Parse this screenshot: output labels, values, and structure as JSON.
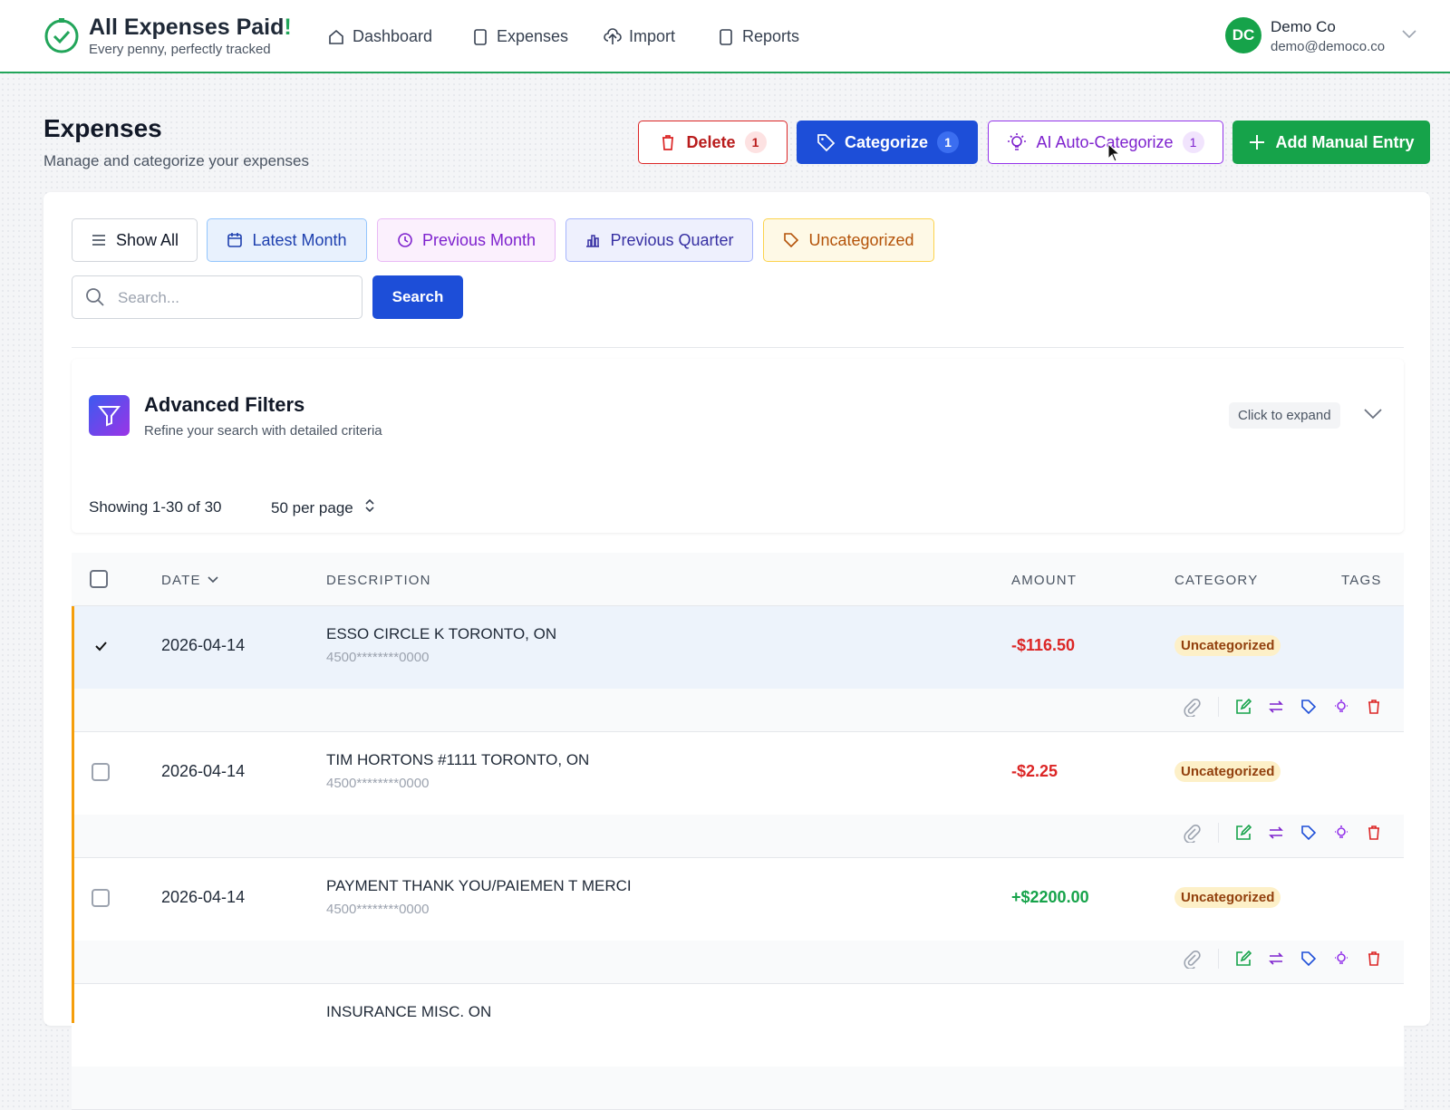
{
  "header": {
    "brand": "All Expenses Paid",
    "brand_mark": "!",
    "tagline": "Every penny, perfectly tracked",
    "nav": [
      "Dashboard",
      "Expenses",
      "Import",
      "Reports"
    ],
    "user": {
      "initials": "DC",
      "name": "Demo Co",
      "email": "demo@democo.co"
    }
  },
  "page": {
    "title": "Expenses",
    "subtitle": "Manage and categorize your expenses",
    "actions": [
      {
        "label": "Delete",
        "count": 1
      },
      {
        "label": "Categorize",
        "count": 1
      },
      {
        "label": "AI Auto-Categorize",
        "count": 1
      },
      {
        "label": "Add Manual Entry"
      }
    ]
  },
  "filters": {
    "presets": [
      "Show All",
      "Latest Month",
      "Previous Month",
      "Previous Quarter",
      "Uncategorized"
    ],
    "search_placeholder": "Search...",
    "search_button": "Search"
  },
  "advanced_filters": {
    "title": "Advanced Filters",
    "subtitle": "Refine your search with detailed criteria",
    "toggle": "Click to expand"
  },
  "pagination": {
    "showing": "Showing 1-30 of 30",
    "per_page": "50 per page"
  },
  "table": {
    "columns": [
      "DATE",
      "DESCRIPTION",
      "AMOUNT",
      "CATEGORY",
      "TAGS"
    ],
    "rows": [
      {
        "date": "2026-04-14",
        "description": "ESSO CIRCLE K TORONTO, ON",
        "account": "4500********0000",
        "amount": "-$116.50",
        "category": "Uncategorized"
      },
      {
        "date": "2026-04-14",
        "description": "TIM HORTONS #1111 TORONTO, ON",
        "account": "4500********0000",
        "amount": "-$2.25",
        "category": "Uncategorized"
      },
      {
        "date": "2026-04-14",
        "description": "PAYMENT THANK YOU/PAIEMEN T MERCI",
        "account": "4500********0000",
        "amount": "+$2200.00",
        "category": "Uncategorized"
      },
      {
        "description": "INSURANCE MISC. ON"
      }
    ]
  }
}
